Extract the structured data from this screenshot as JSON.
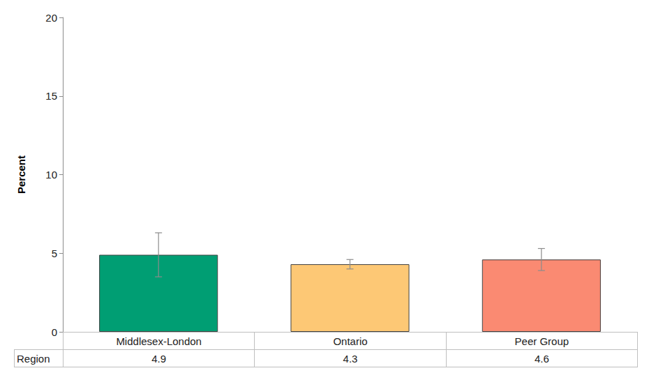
{
  "chart_data": {
    "type": "bar",
    "y_label": "Percent",
    "categories": [
      "Middlesex-London",
      "Ontario",
      "Peer Group"
    ],
    "series": [
      {
        "name": "Region",
        "values": [
          4.9,
          4.3,
          4.6
        ],
        "colors": [
          "#009e73",
          "#fdc875",
          "#fa8a72"
        ],
        "error_low": [
          3.5,
          4.0,
          3.9
        ],
        "error_high": [
          6.3,
          4.6,
          5.3
        ]
      }
    ],
    "ylim": [
      0,
      20
    ],
    "yticks": [
      0,
      5,
      10,
      15,
      20
    ],
    "grid": false
  }
}
